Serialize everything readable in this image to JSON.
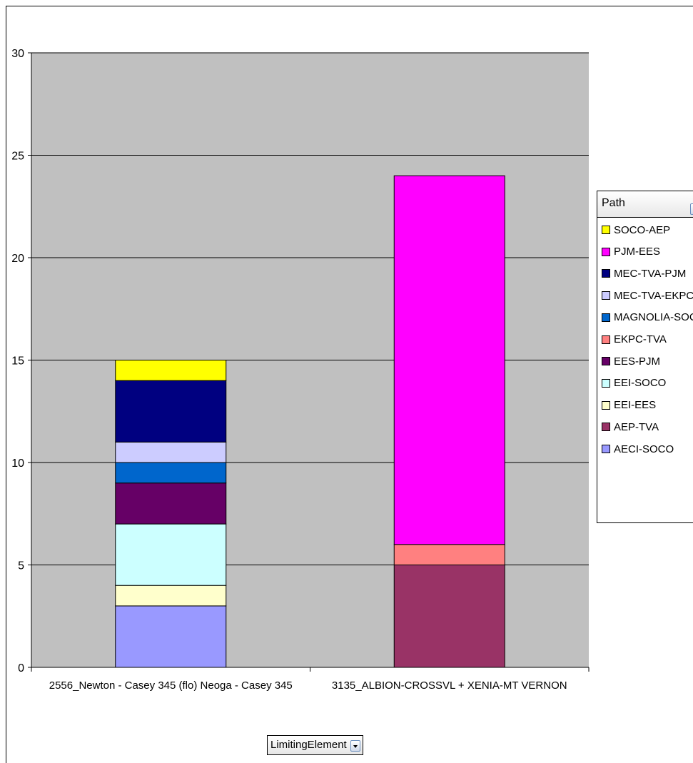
{
  "chart_data": {
    "type": "bar",
    "stacked": true,
    "categories": [
      "2556_Newton - Casey 345 (flo) Neoga - Casey 345",
      "3135_ALBION-CROSSVL + XENIA-MT VERNON"
    ],
    "series": [
      {
        "name": "AECI-SOCO",
        "color": "#9999ff",
        "values": [
          3,
          0
        ]
      },
      {
        "name": "AEP-TVA",
        "color": "#993366",
        "values": [
          0,
          5
        ]
      },
      {
        "name": "EEI-EES",
        "color": "#ffffcc",
        "values": [
          1,
          0
        ]
      },
      {
        "name": "EEI-SOCO",
        "color": "#ccffff",
        "values": [
          3,
          0
        ]
      },
      {
        "name": "EES-PJM",
        "color": "#660066",
        "values": [
          2,
          0
        ]
      },
      {
        "name": "EKPC-TVA",
        "color": "#ff8080",
        "values": [
          0,
          1
        ]
      },
      {
        "name": "MAGNOLIA-SOCO",
        "color": "#0066cc",
        "values": [
          1,
          0
        ]
      },
      {
        "name": "MEC-TVA-EKPC",
        "color": "#ccccff",
        "values": [
          1,
          0
        ]
      },
      {
        "name": "MEC-TVA-PJM",
        "color": "#000080",
        "values": [
          3,
          0
        ]
      },
      {
        "name": "PJM-EES",
        "color": "#ff00ff",
        "values": [
          0,
          18
        ]
      },
      {
        "name": "SOCO-AEP",
        "color": "#ffff00",
        "values": [
          1,
          0
        ]
      }
    ],
    "ylim": [
      0,
      30
    ],
    "yticks": [
      "0",
      "5",
      "10",
      "15",
      "20",
      "25",
      "30"
    ],
    "grid": true,
    "plot_background": "#c0c0c0",
    "legend_position": "right",
    "legend_order": [
      "SOCO-AEP",
      "PJM-EES",
      "MEC-TVA-PJM",
      "MEC-TVA-EKPC",
      "MAGNOLIA-SOCO",
      "EKPC-TVA",
      "EES-PJM",
      "EEI-SOCO",
      "EEI-EES",
      "AEP-TVA",
      "AECI-SOCO"
    ]
  },
  "legend": {
    "title": "Path",
    "dropdown_icon": "dropdown-arrow-icon"
  },
  "field_button": {
    "label": "LimitingElement",
    "dropdown_icon": "dropdown-arrow-icon"
  }
}
